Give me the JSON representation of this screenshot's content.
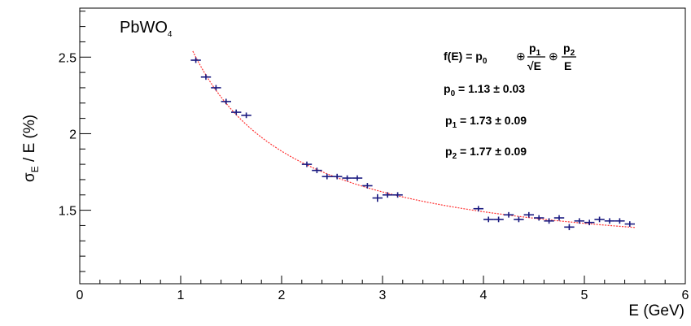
{
  "chart_data": {
    "type": "scatter",
    "panel_label": {
      "base": "PbWO",
      "sub": "4"
    },
    "xlabel": "E (GeV)",
    "ylabel": {
      "sigma": "σ",
      "sigma_sub": "E",
      "rest": " / E (%)"
    },
    "xlim": [
      0,
      6
    ],
    "ylim": [
      1.02,
      2.82
    ],
    "x_ticks": [
      "0",
      "1",
      "2",
      "3",
      "4",
      "5",
      "6"
    ],
    "y_ticks": [
      "1.5",
      "2",
      "2.5"
    ],
    "x_tick_values": [
      0,
      1,
      2,
      3,
      4,
      5,
      6
    ],
    "y_tick_values": [
      1.5,
      2,
      2.5
    ],
    "grid": false,
    "marker_color": "#1a1a80",
    "fit_color": "#ff3333",
    "fit": {
      "formula": {
        "lhs": "f(E) = p",
        "p0_sub": "0",
        "oplus": "⊕",
        "p1": "p",
        "p1_sub": "1",
        "sqrtE": "√E",
        "p2": "p",
        "p2_sub": "2",
        "E": "E"
      },
      "params": [
        {
          "name": "p",
          "sub": "0",
          "text": " = 1.13 ± 0.03",
          "value": 1.13,
          "error": 0.03
        },
        {
          "name": "p",
          "sub": "1",
          "text": " = 1.73 ± 0.09",
          "value": 1.73,
          "error": 0.09
        },
        {
          "name": "p",
          "sub": "2",
          "text": " = 1.77 ± 0.09",
          "value": 1.77,
          "error": 0.09
        }
      ],
      "x_range": [
        1.12,
        5.5
      ]
    },
    "series": [
      {
        "x": [
          1.15,
          1.25,
          1.35,
          1.45,
          1.55,
          1.65,
          2.25,
          2.35,
          2.45,
          2.55,
          2.65,
          2.75,
          2.85,
          2.95,
          3.05,
          3.15,
          3.95,
          4.05,
          4.15,
          4.25,
          4.35,
          4.45,
          4.55,
          4.65,
          4.75,
          4.85,
          4.95,
          5.05,
          5.15,
          5.25,
          5.35,
          5.45
        ],
        "y": [
          2.48,
          2.37,
          2.3,
          2.21,
          2.14,
          2.12,
          1.8,
          1.76,
          1.72,
          1.72,
          1.71,
          1.71,
          1.66,
          1.58,
          1.6,
          1.6,
          1.51,
          1.44,
          1.44,
          1.47,
          1.44,
          1.47,
          1.45,
          1.43,
          1.45,
          1.39,
          1.43,
          1.42,
          1.44,
          1.43,
          1.43,
          1.41
        ],
        "xerr": 0.05,
        "yerr": [
          0.015,
          0.015,
          0.015,
          0.015,
          0.015,
          0.015,
          0.012,
          0.012,
          0.012,
          0.012,
          0.012,
          0.012,
          0.012,
          0.025,
          0.012,
          0.012,
          0.012,
          0.012,
          0.012,
          0.012,
          0.012,
          0.012,
          0.012,
          0.012,
          0.012,
          0.02,
          0.012,
          0.012,
          0.012,
          0.012,
          0.012,
          0.012
        ]
      }
    ]
  }
}
